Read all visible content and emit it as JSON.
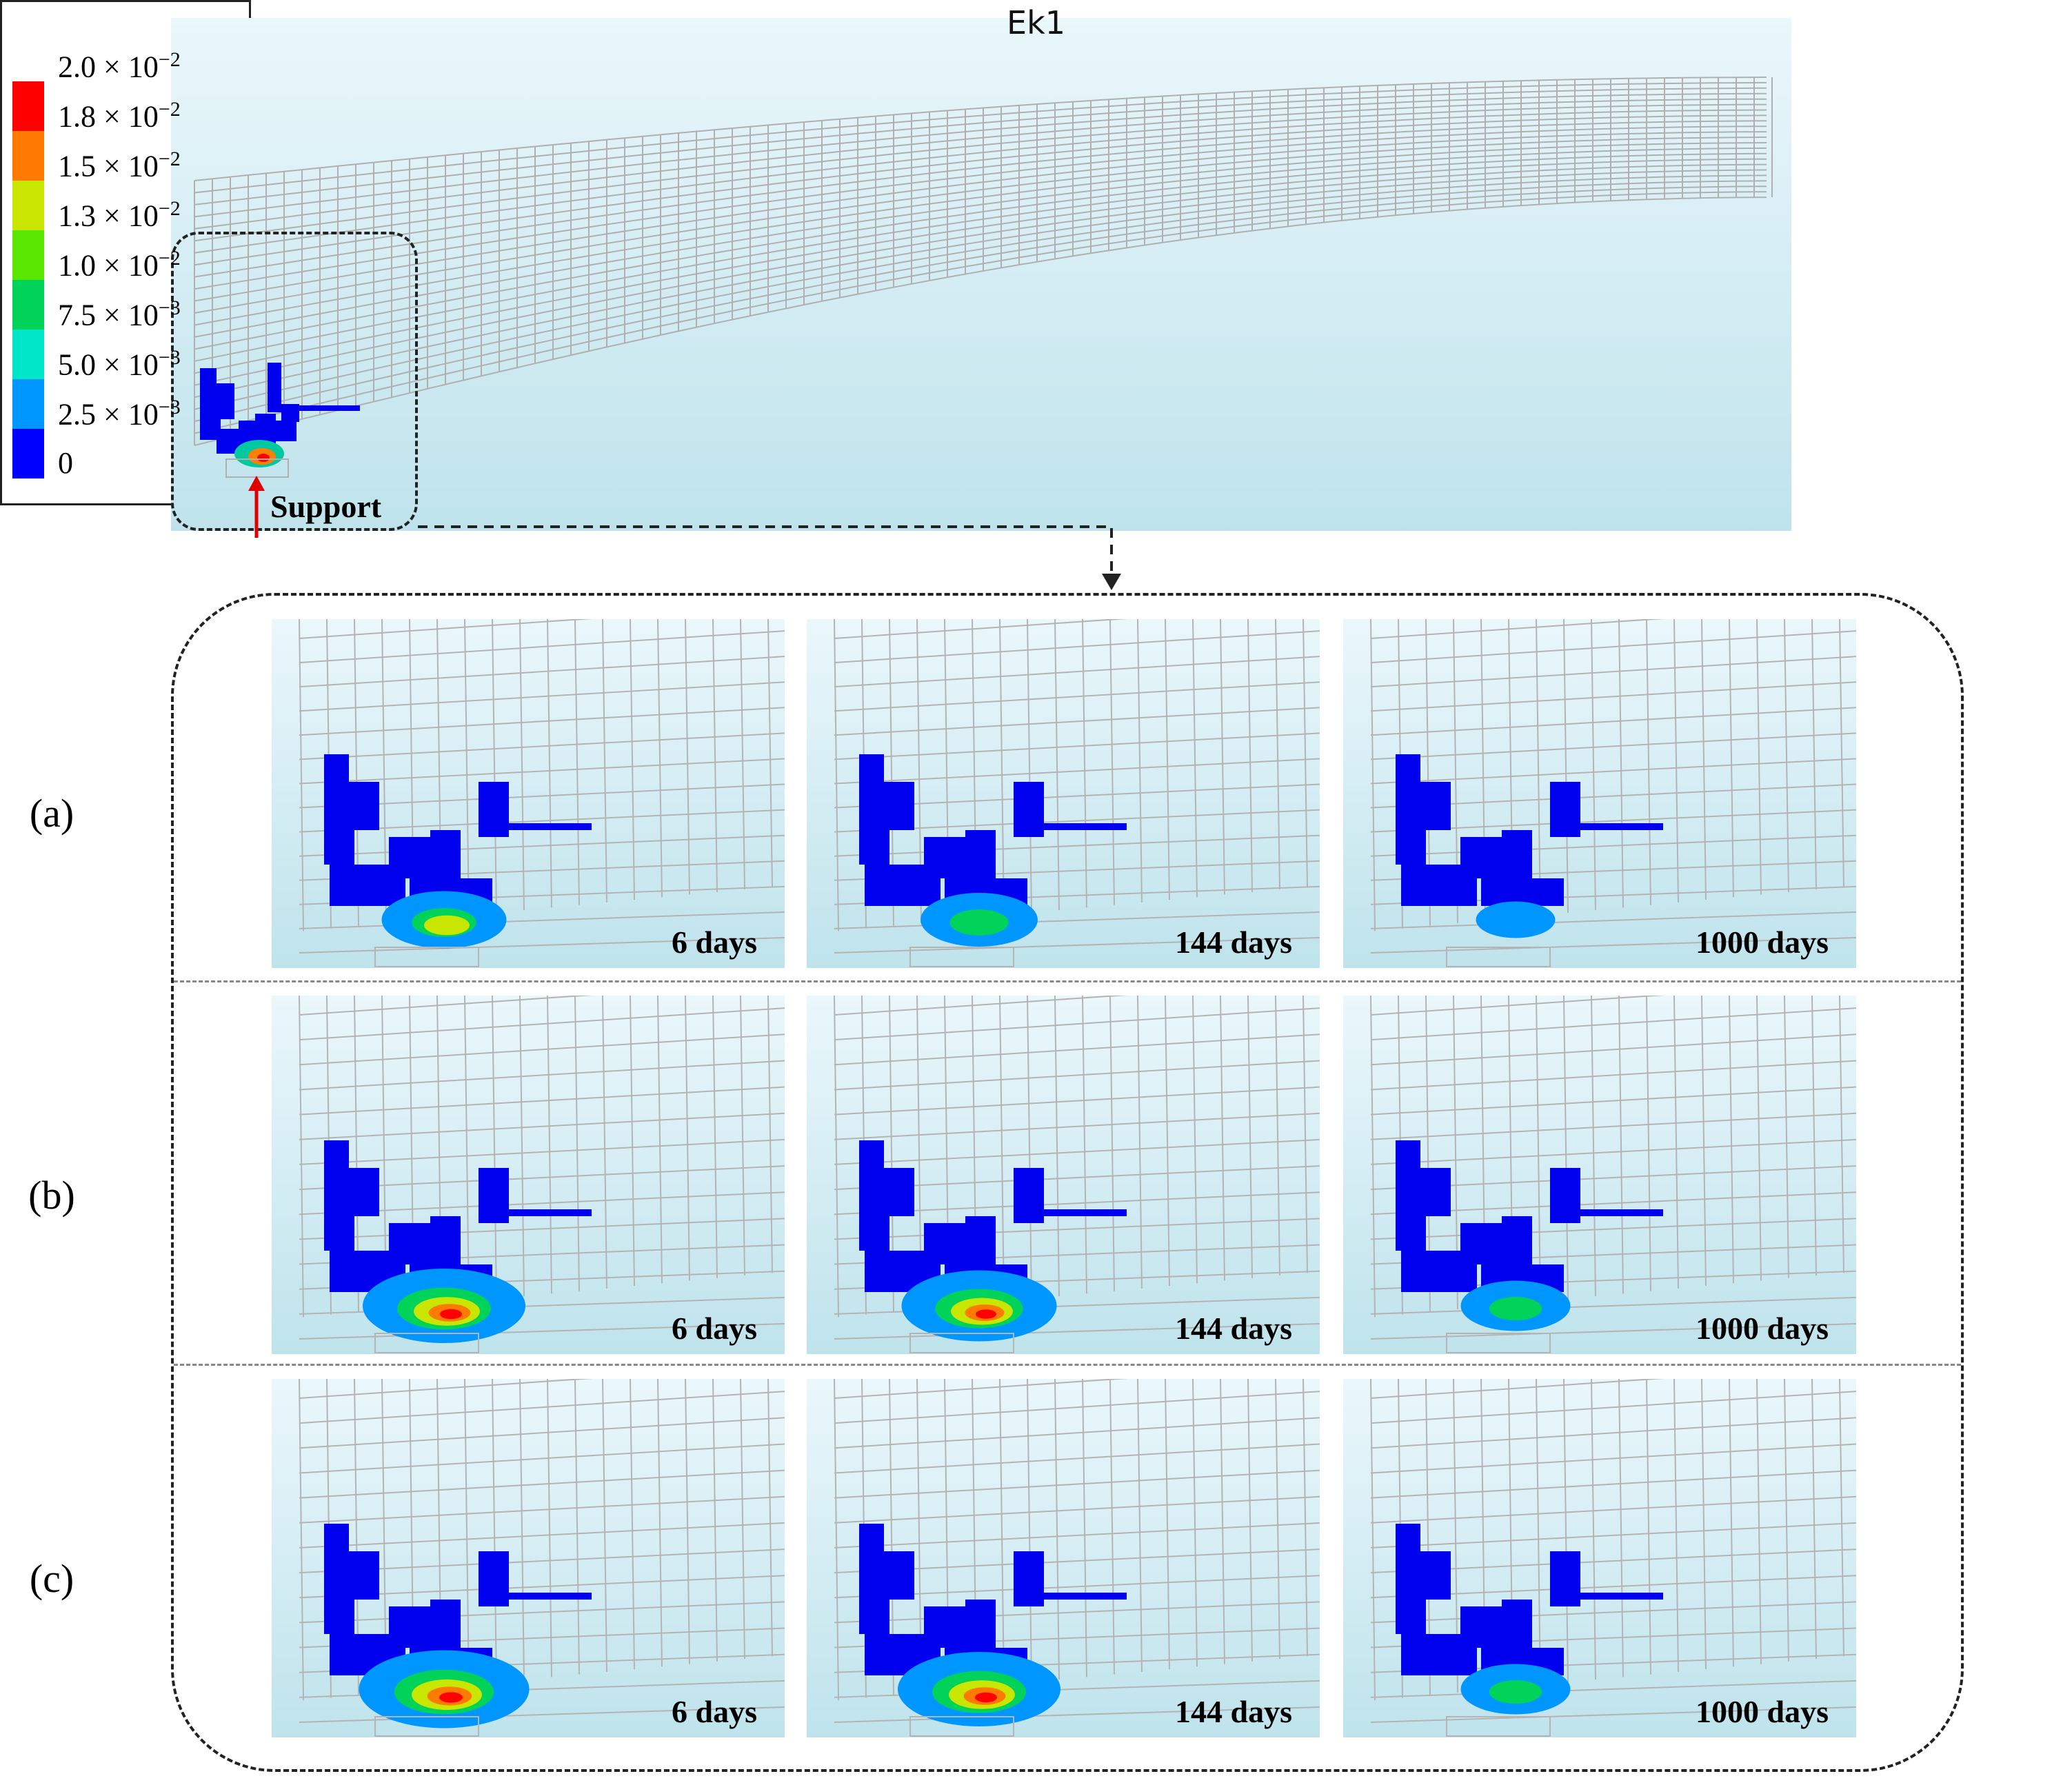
{
  "overview": {
    "support_label": "Support"
  },
  "legend": {
    "title": "Ek1",
    "entries": [
      {
        "mantissa": "2.0 × 10",
        "exp": "−2",
        "color": "#ff0000"
      },
      {
        "mantissa": "1.8 × 10",
        "exp": "−2",
        "color": "#ff7a00"
      },
      {
        "mantissa": "1.5 × 10",
        "exp": "−2",
        "color": "#c8e600"
      },
      {
        "mantissa": "1.3 × 10",
        "exp": "−2",
        "color": "#5ae600"
      },
      {
        "mantissa": "1.0 × 10",
        "exp": "−2",
        "color": "#00d25a"
      },
      {
        "mantissa": "7.5 × 10",
        "exp": "−3",
        "color": "#00e6c8"
      },
      {
        "mantissa": "5.0 × 10",
        "exp": "−3",
        "color": "#0096ff"
      },
      {
        "mantissa": "2.5 × 10",
        "exp": "−3",
        "color": "#0000ff"
      },
      {
        "mantissa": "0",
        "exp": "",
        "color": ""
      }
    ]
  },
  "rows": [
    {
      "label": "(a)",
      "panels": [
        {
          "days": "6 days"
        },
        {
          "days": "144 days"
        },
        {
          "days": "1000 days"
        }
      ]
    },
    {
      "label": "(b)",
      "panels": [
        {
          "days": "6 days"
        },
        {
          "days": "144 days"
        },
        {
          "days": "1000 days"
        }
      ]
    },
    {
      "label": "(c)",
      "panels": [
        {
          "days": "6 days"
        },
        {
          "days": "144 days"
        },
        {
          "days": "1000 days"
        }
      ]
    }
  ]
}
